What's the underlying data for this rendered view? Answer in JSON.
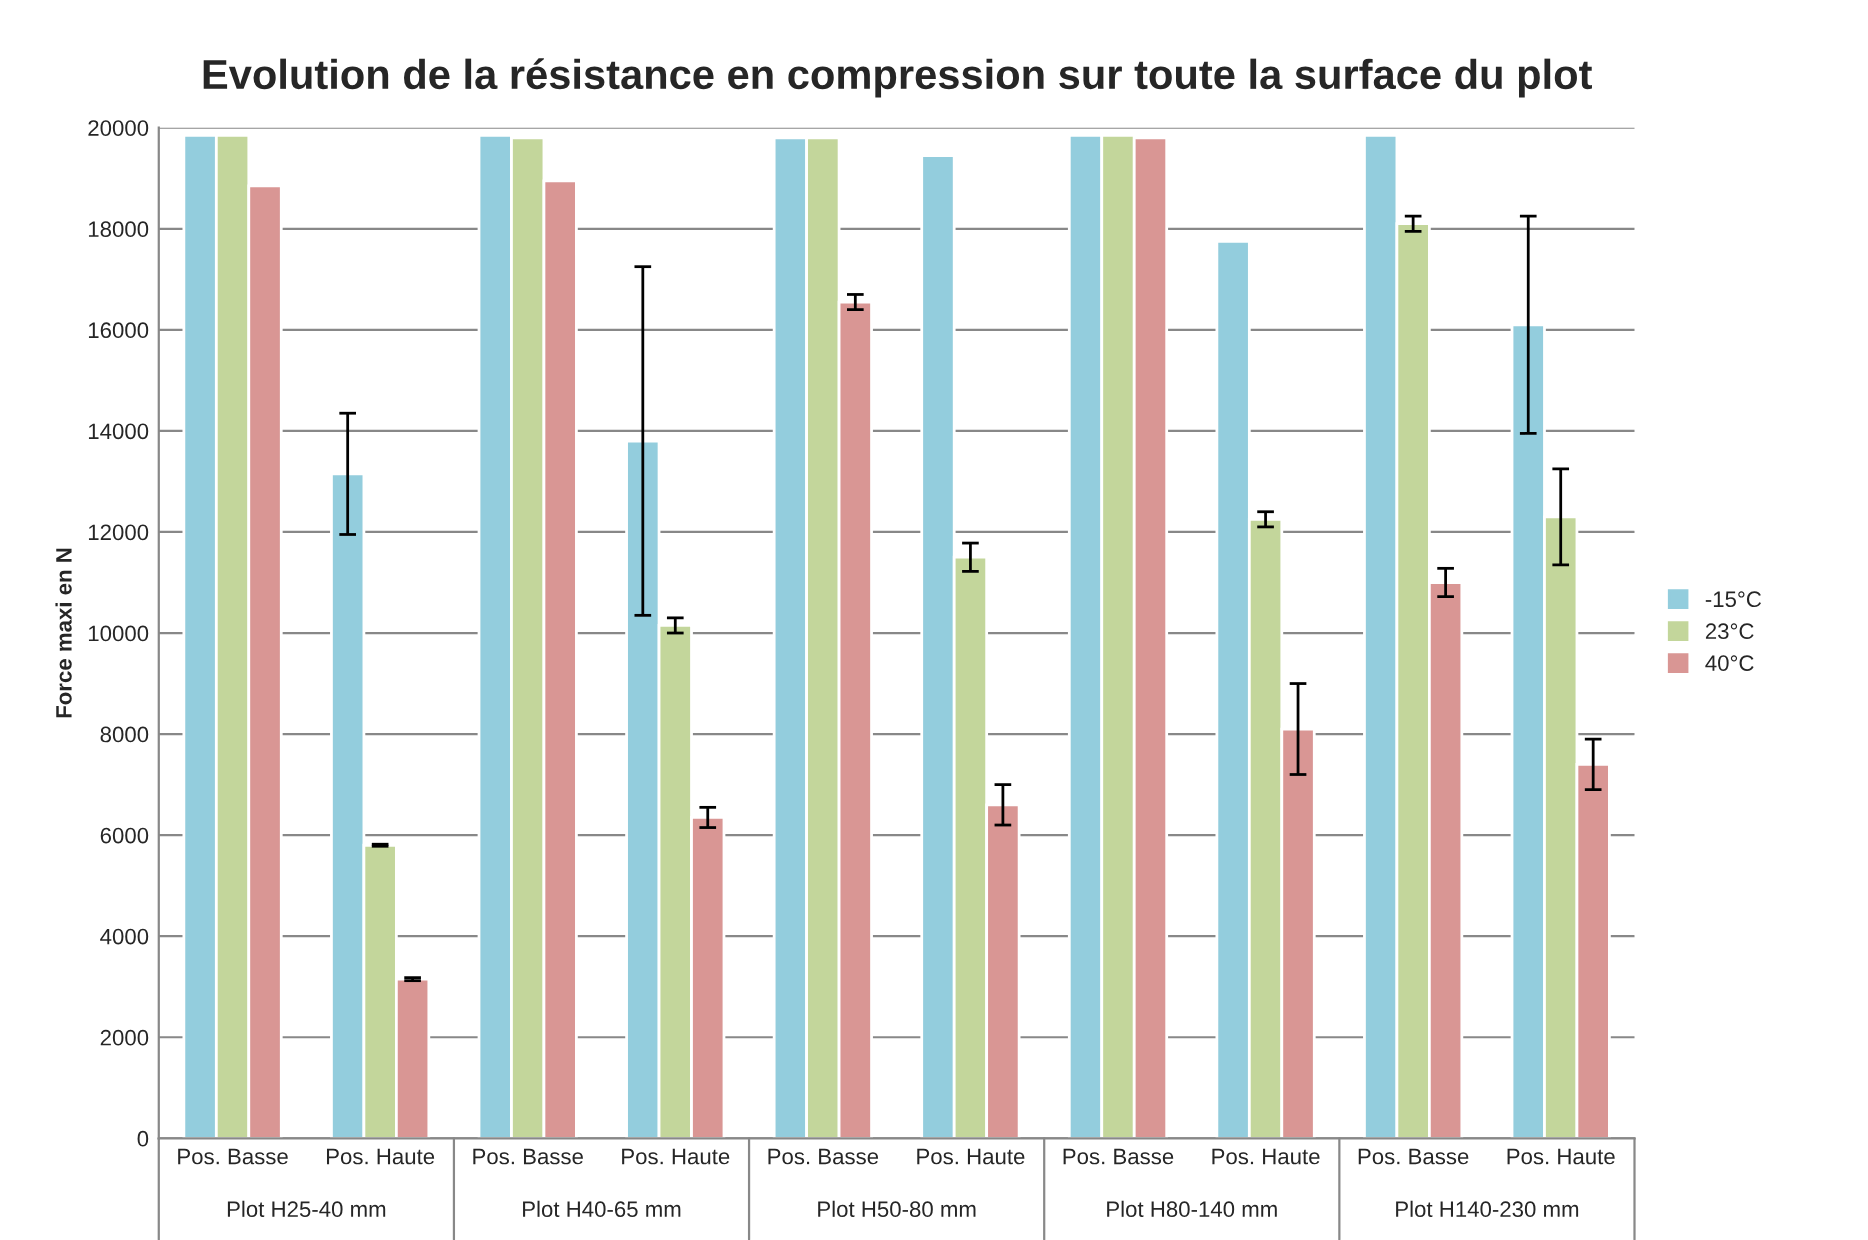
{
  "chart_data": {
    "type": "bar",
    "title": "Evolution de la résistance en compression sur toute la surface du plot",
    "ylabel": "Force maxi en N",
    "categories": [
      "Pos. Basse",
      "Pos. Haute",
      "Pos. Basse",
      "Pos. Haute",
      "Pos. Basse",
      "Pos. Haute",
      "Pos. Basse",
      "Pos. Haute",
      "Pos. Basse",
      "Pos. Haute"
    ],
    "annotations": [
      "Plot H25-40 mm",
      "Plot H40-65 mm",
      "Plot H50-80 mm",
      "Plot H80-140 mm",
      "Plot H140-230 mm"
    ],
    "series": [
      {
        "name": "-15°C",
        "color": "#93cddd",
        "values": [
          19850,
          13150,
          19850,
          13800,
          19800,
          19450,
          19850,
          17750,
          19850,
          16100
        ],
        "errors": [
          null,
          1200,
          null,
          3450,
          null,
          null,
          null,
          null,
          null,
          2150
        ]
      },
      {
        "name": "23°C",
        "color": "#c3d69b",
        "values": [
          19850,
          5800,
          19800,
          10150,
          19800,
          11500,
          19850,
          12250,
          18100,
          12300
        ],
        "errors": [
          null,
          20,
          null,
          150,
          null,
          280,
          null,
          150,
          150,
          950
        ]
      },
      {
        "name": "40°C",
        "color": "#d99694",
        "values": [
          18850,
          3150,
          18950,
          6350,
          16550,
          6600,
          19800,
          8100,
          11000,
          7400
        ],
        "errors": [
          null,
          30,
          null,
          200,
          150,
          400,
          null,
          900,
          280,
          500
        ]
      }
    ],
    "ylim": [
      0,
      20000
    ],
    "yticks": [
      0,
      2000,
      4000,
      6000,
      8000,
      10000,
      12000,
      14000,
      16000,
      18000,
      20000
    ],
    "grid": "y",
    "legend": "right"
  }
}
